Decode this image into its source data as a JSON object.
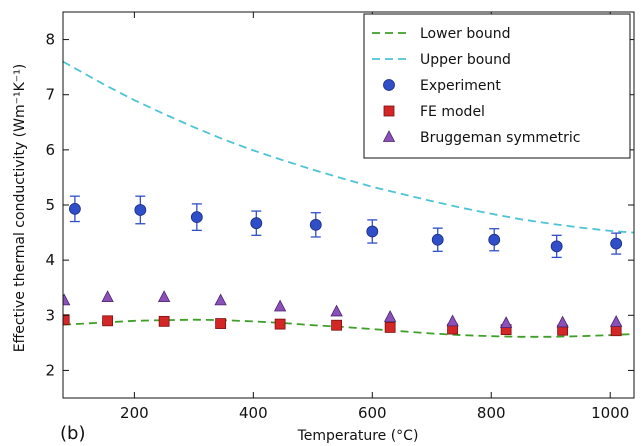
{
  "chart_data": {
    "type": "scatter",
    "panel_label": "(b)",
    "xlabel": "Temperature (°C)",
    "ylabel": "Effective thermal conductivity (Wm⁻¹K⁻¹)",
    "xlim": [
      80,
      1040
    ],
    "ylim": [
      1.5,
      8.5
    ],
    "xticks": [
      200,
      400,
      600,
      800,
      1000
    ],
    "yticks": [
      2,
      3,
      4,
      5,
      6,
      7,
      8
    ],
    "grid": false,
    "legend_position": "top-right",
    "series": [
      {
        "name": "Lower bound",
        "kind": "dashed-line",
        "color": "#3f9f2a",
        "x": [
          80,
          150,
          200,
          250,
          300,
          350,
          400,
          450,
          500,
          550,
          600,
          650,
          700,
          750,
          800,
          850,
          900,
          950,
          1000,
          1040
        ],
        "y": [
          2.83,
          2.87,
          2.9,
          2.91,
          2.92,
          2.91,
          2.89,
          2.86,
          2.82,
          2.79,
          2.75,
          2.71,
          2.67,
          2.64,
          2.62,
          2.61,
          2.61,
          2.62,
          2.64,
          2.66
        ]
      },
      {
        "name": "Upper bound",
        "kind": "dashed-line",
        "color": "#4fc3d6",
        "x": [
          80,
          150,
          200,
          250,
          300,
          350,
          400,
          450,
          500,
          550,
          600,
          650,
          700,
          750,
          800,
          850,
          900,
          950,
          1000,
          1040
        ],
        "y": [
          7.6,
          7.18,
          6.9,
          6.65,
          6.41,
          6.19,
          5.99,
          5.81,
          5.64,
          5.48,
          5.33,
          5.2,
          5.07,
          4.95,
          4.84,
          4.74,
          4.66,
          4.59,
          4.53,
          4.5
        ]
      },
      {
        "name": "Experiment",
        "kind": "marker-circle",
        "color": "#2f4fc8",
        "x": [
          100,
          210,
          305,
          405,
          505,
          600,
          710,
          805,
          910,
          1010
        ],
        "y": [
          4.93,
          4.91,
          4.78,
          4.67,
          4.64,
          4.52,
          4.37,
          4.37,
          4.25,
          4.3
        ],
        "yerr": [
          0.23,
          0.25,
          0.24,
          0.22,
          0.22,
          0.21,
          0.21,
          0.2,
          0.2,
          0.19
        ]
      },
      {
        "name": "FE model",
        "kind": "marker-square",
        "color": "#d42626",
        "x": [
          82,
          155,
          250,
          345,
          445,
          540,
          630,
          735,
          825,
          920,
          1010
        ],
        "y": [
          2.92,
          2.9,
          2.89,
          2.85,
          2.84,
          2.82,
          2.78,
          2.75,
          2.74,
          2.73,
          2.72
        ]
      },
      {
        "name": "Bruggeman symmetric",
        "kind": "marker-triangle",
        "color": "#8a52b8",
        "x": [
          82,
          155,
          250,
          345,
          445,
          540,
          630,
          735,
          825,
          920,
          1010
        ],
        "y": [
          3.27,
          3.33,
          3.33,
          3.27,
          3.16,
          3.07,
          2.97,
          2.89,
          2.86,
          2.87,
          2.88
        ]
      }
    ]
  }
}
